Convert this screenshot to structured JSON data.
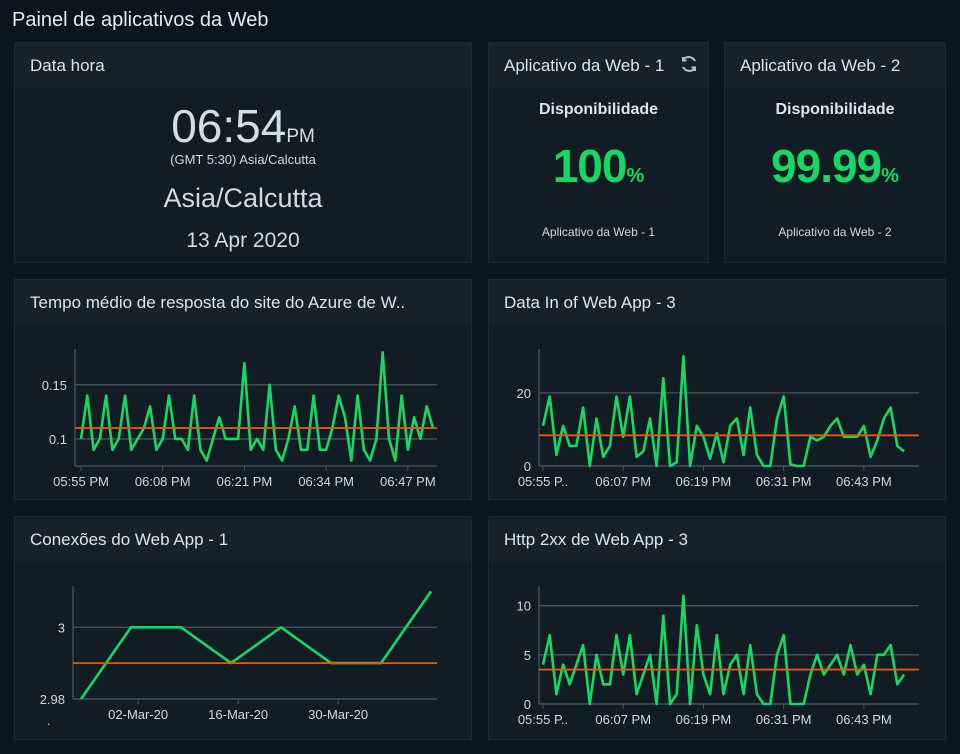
{
  "page_title": "Painel de aplicativos da Web",
  "clock": {
    "title": "Data hora",
    "time": "06:54",
    "ampm": "PM",
    "tz": "(GMT 5:30) Asia/Calcutta",
    "city": "Asia/Calcutta",
    "date": "13 Apr 2020"
  },
  "apps": [
    {
      "title": "Aplicativo da Web - 1",
      "metric": "Disponibilidade",
      "value": "100",
      "unit": "%",
      "caption": "Aplicativo da Web - 1",
      "icon": "refresh-icon"
    },
    {
      "title": "Aplicativo da Web - 2",
      "metric": "Disponibilidade",
      "value": "99.99",
      "unit": "%",
      "caption": "Aplicativo da Web - 2"
    }
  ],
  "colors": {
    "series": "#14d964",
    "average": "#e8580c",
    "grid": "#4a555e"
  },
  "chart_data": [
    {
      "type": "line",
      "title": "Tempo médio de resposta do site do Azure de W..",
      "x_start": "05:55 PM",
      "x_step_minutes": 1,
      "ylim": [
        0.075,
        0.183
      ],
      "yticks": [
        "0.1",
        "0.15"
      ],
      "ytick_values": [
        0.1,
        0.15
      ],
      "xticks": [
        {
          "label": "05:55 PM",
          "at": 0
        },
        {
          "label": "06:08 PM",
          "at": 13
        },
        {
          "label": "06:21 PM",
          "at": 26
        },
        {
          "label": "06:34 PM",
          "at": 39
        },
        {
          "label": "06:47 PM",
          "at": 52
        }
      ],
      "average": 0.11,
      "values": [
        0.1,
        0.14,
        0.09,
        0.1,
        0.14,
        0.09,
        0.1,
        0.14,
        0.09,
        0.1,
        0.11,
        0.13,
        0.09,
        0.1,
        0.14,
        0.1,
        0.1,
        0.09,
        0.14,
        0.09,
        0.08,
        0.1,
        0.12,
        0.1,
        0.1,
        0.1,
        0.17,
        0.09,
        0.1,
        0.09,
        0.15,
        0.09,
        0.08,
        0.1,
        0.13,
        0.09,
        0.09,
        0.14,
        0.09,
        0.09,
        0.11,
        0.14,
        0.12,
        0.08,
        0.14,
        0.09,
        0.08,
        0.1,
        0.18,
        0.1,
        0.08,
        0.14,
        0.09,
        0.12,
        0.1,
        0.13,
        0.11
      ]
    },
    {
      "type": "line",
      "title": "Data In of Web App - 3",
      "x_start": "05:55 PM",
      "x_step_minutes": 1,
      "ylim": [
        0,
        32
      ],
      "yticks": [
        "0",
        "20"
      ],
      "ytick_values": [
        0,
        20
      ],
      "xticks": [
        {
          "label": "05:55 P..",
          "at": 0
        },
        {
          "label": "06:07 PM",
          "at": 12
        },
        {
          "label": "06:19 PM",
          "at": 24
        },
        {
          "label": "06:31 PM",
          "at": 36
        },
        {
          "label": "06:43 PM",
          "at": 48
        }
      ],
      "average": 8.4,
      "values": [
        11,
        19,
        3,
        11,
        5.5,
        5.5,
        16,
        0,
        13,
        2.5,
        5.5,
        19,
        8,
        19,
        2.5,
        4,
        13,
        0,
        24,
        0,
        1,
        30,
        0,
        11,
        8,
        2,
        9,
        1,
        11,
        13,
        3,
        16,
        3,
        0,
        0,
        13,
        19,
        0.5,
        0,
        0,
        8,
        7,
        8,
        11,
        13,
        8,
        8,
        8,
        11,
        2.5,
        7,
        13,
        16,
        5.5,
        4
      ]
    },
    {
      "type": "line",
      "title": "Conexões do Web App - 1",
      "ylim": [
        2.98,
        3.0115
      ],
      "yticks": [
        "3",
        "2.98"
      ],
      "ytick_values": [
        3,
        2.98
      ],
      "extra_ylabel": ".",
      "xticks": [
        {
          "label": "02-Mar-20",
          "at": "2020-03-02"
        },
        {
          "label": "16-Mar-20",
          "at": "2020-03-16"
        },
        {
          "label": "30-Mar-20",
          "at": "2020-03-30"
        }
      ],
      "average": 2.99,
      "x": [
        "2020-02-23",
        "2020-03-01",
        "2020-03-08",
        "2020-03-15",
        "2020-03-22",
        "2020-03-29",
        "2020-04-05",
        "2020-04-12"
      ],
      "values": [
        2.98,
        3,
        3,
        2.99,
        3,
        2.99,
        2.99,
        3.01
      ]
    },
    {
      "type": "line",
      "title": "Http 2xx de Web App - 3",
      "x_start": "05:55 PM",
      "x_step_minutes": 1,
      "ylim": [
        0,
        12
      ],
      "yticks": [
        "0",
        "5",
        "10"
      ],
      "ytick_values": [
        0,
        5,
        10
      ],
      "xticks": [
        {
          "label": "05:55 P..",
          "at": 0
        },
        {
          "label": "06:07 PM",
          "at": 12
        },
        {
          "label": "06:19 PM",
          "at": 24
        },
        {
          "label": "06:31 PM",
          "at": 36
        },
        {
          "label": "06:43 PM",
          "at": 48
        }
      ],
      "average": 3.5,
      "values": [
        4,
        7,
        1,
        4,
        2,
        4,
        6,
        0,
        5,
        2,
        2,
        7,
        3,
        7,
        1,
        3,
        5,
        0,
        9,
        0,
        1,
        11,
        0,
        8,
        3,
        1,
        7,
        1,
        4,
        5,
        1,
        6,
        1,
        0,
        0,
        5,
        7,
        0,
        0,
        0,
        3,
        5,
        3,
        4,
        5,
        3,
        6,
        3,
        4,
        1,
        5,
        5,
        6,
        2,
        3
      ]
    }
  ]
}
